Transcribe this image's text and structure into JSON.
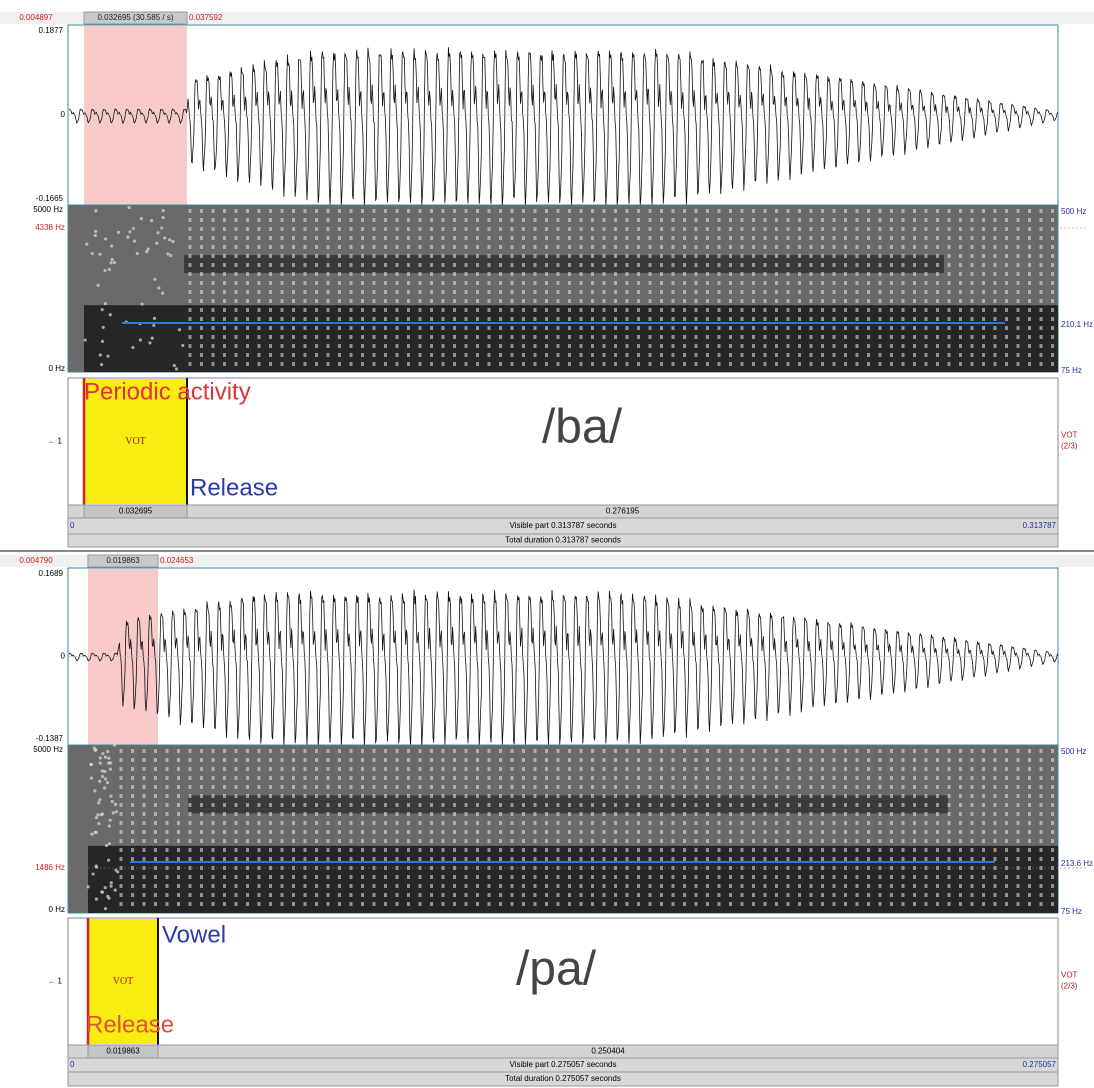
{
  "panels": [
    {
      "selection": {
        "start": "0.004897",
        "duration": "0.032695 (30.585 / s)",
        "end": "0.037592"
      },
      "waveform": {
        "max": "0.1877",
        "zero": "0",
        "min": "-0.1665"
      },
      "spectrogram": {
        "top": "5000 Hz",
        "cursor": "4338 Hz",
        "bottom": "0 Hz",
        "pitch_top": "500 Hz",
        "pitch_value": "210.1 Hz",
        "pitch_bottom": "75 Hz"
      },
      "syllable": "/ba/",
      "annotations": [
        {
          "text": "Periodic activity",
          "color": "#e0303a"
        },
        {
          "text": "Release",
          "color": "#2a3aa8"
        }
      ],
      "tier": {
        "number": "1",
        "interval": "VOT",
        "name": "VOT",
        "count": "(2/3)"
      },
      "footer": {
        "interval": "0.032695",
        "rest": "0.276195",
        "start": "0",
        "visible": "Visible part 0.313787 seconds",
        "end": "0.313787",
        "total": "Total duration 0.313787 seconds"
      }
    },
    {
      "selection": {
        "start": "0.004790",
        "duration": "0.019863",
        "end": "0.024653"
      },
      "waveform": {
        "max": "0.1689",
        "zero": "0",
        "min": "-0.1387"
      },
      "spectrogram": {
        "top": "5000 Hz",
        "cursor": "1486 Hz",
        "bottom": "0 Hz",
        "pitch_top": "500 Hz",
        "pitch_value": "213.6 Hz",
        "pitch_bottom": "75 Hz"
      },
      "syllable": "/pa/",
      "annotations": [
        {
          "text": "Vowel",
          "color": "#2a3aa8"
        },
        {
          "text": "Release",
          "color": "#e0503a"
        }
      ],
      "tier": {
        "number": "1",
        "interval": "VOT",
        "name": "VOT",
        "count": "(2/3)"
      },
      "footer": {
        "interval": "0.019863",
        "rest": "0.250404",
        "start": "0",
        "visible": "Visible part 0.275057 seconds",
        "end": "0.275057",
        "total": "Total duration 0.275057 seconds"
      }
    }
  ]
}
